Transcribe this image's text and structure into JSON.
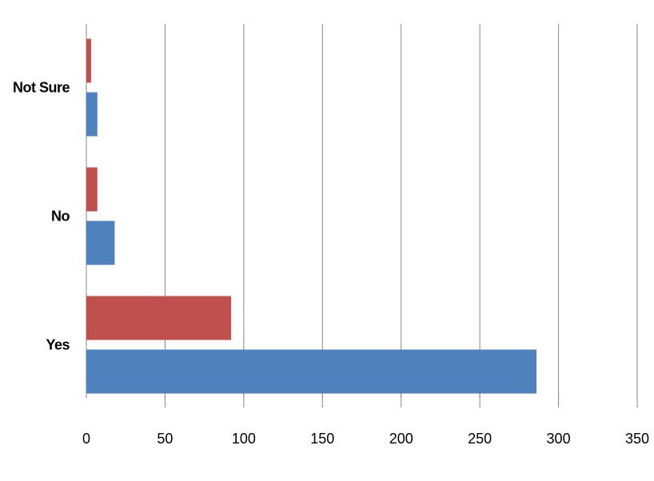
{
  "chart_data": {
    "type": "bar",
    "orientation": "horizontal",
    "categories": [
      "Yes",
      "No",
      "Not Sure"
    ],
    "series": [
      {
        "color": "#4f81bd",
        "values": [
          286,
          18,
          7
        ]
      },
      {
        "color": "#c0504d",
        "values": [
          92,
          7,
          3
        ]
      }
    ],
    "xlim": [
      0,
      350
    ],
    "xticks": [
      0,
      50,
      100,
      150,
      200,
      250,
      300,
      350
    ],
    "grid": true
  }
}
